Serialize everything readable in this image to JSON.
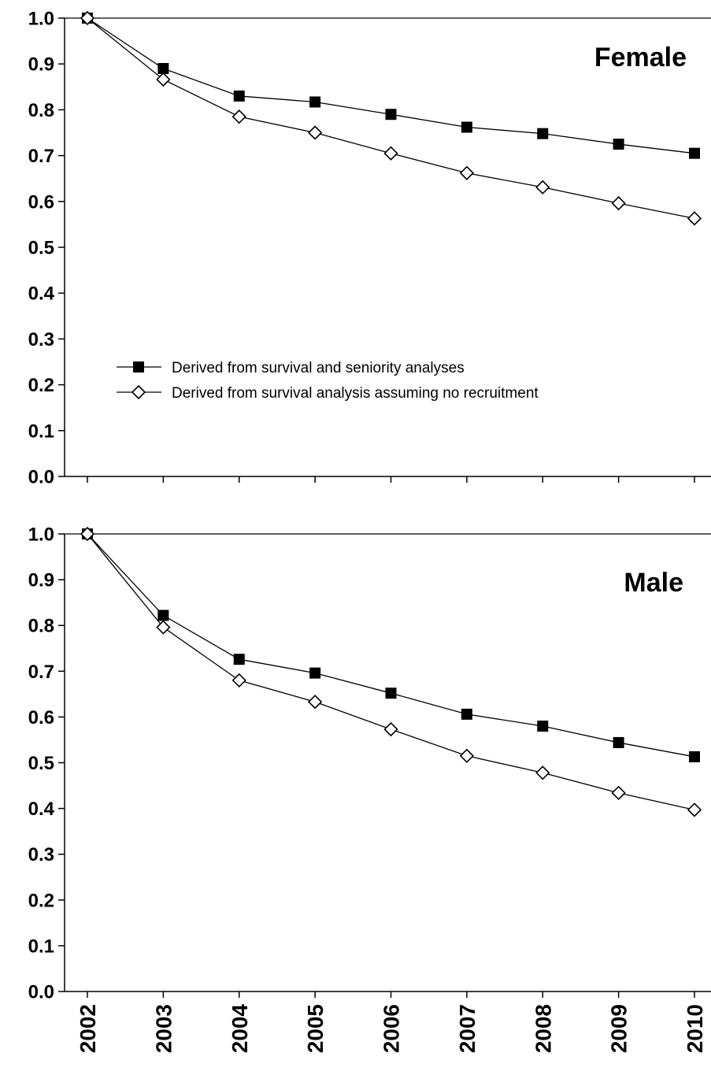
{
  "chart_data": [
    {
      "type": "line",
      "title": "Female",
      "x": [
        2002,
        2003,
        2004,
        2005,
        2006,
        2007,
        2008,
        2009,
        2010
      ],
      "ylim": [
        0.0,
        1.0
      ],
      "yticks": [
        "0.0",
        "0.1",
        "0.2",
        "0.3",
        "0.4",
        "0.5",
        "0.6",
        "0.7",
        "0.8",
        "0.9",
        "1.0"
      ],
      "grid": false,
      "legend_position": "center-left",
      "series": [
        {
          "name": "Derived from survival and seniority analyses",
          "marker": "filled-square",
          "color": "#000000",
          "values": [
            1.0,
            0.89,
            0.83,
            0.817,
            0.79,
            0.762,
            0.748,
            0.725,
            0.705
          ]
        },
        {
          "name": "Derived from survival analysis assuming no recruitment",
          "marker": "open-diamond",
          "color": "#000000",
          "values": [
            1.0,
            0.866,
            0.785,
            0.75,
            0.705,
            0.662,
            0.631,
            0.596,
            0.563
          ]
        }
      ]
    },
    {
      "type": "line",
      "title": "Male",
      "x": [
        2002,
        2003,
        2004,
        2005,
        2006,
        2007,
        2008,
        2009,
        2010
      ],
      "xticks": [
        "2002",
        "2003",
        "2004",
        "2005",
        "2006",
        "2007",
        "2008",
        "2009",
        "2010"
      ],
      "ylim": [
        0.0,
        1.0
      ],
      "yticks": [
        "0.0",
        "0.1",
        "0.2",
        "0.3",
        "0.4",
        "0.5",
        "0.6",
        "0.7",
        "0.8",
        "0.9",
        "1.0"
      ],
      "grid": false,
      "series": [
        {
          "marker": "filled-square",
          "color": "#000000",
          "values": [
            1.0,
            0.822,
            0.726,
            0.696,
            0.652,
            0.606,
            0.58,
            0.544,
            0.513
          ]
        },
        {
          "marker": "open-diamond",
          "color": "#000000",
          "values": [
            1.0,
            0.796,
            0.68,
            0.633,
            0.573,
            0.515,
            0.478,
            0.434,
            0.397
          ]
        }
      ]
    }
  ]
}
